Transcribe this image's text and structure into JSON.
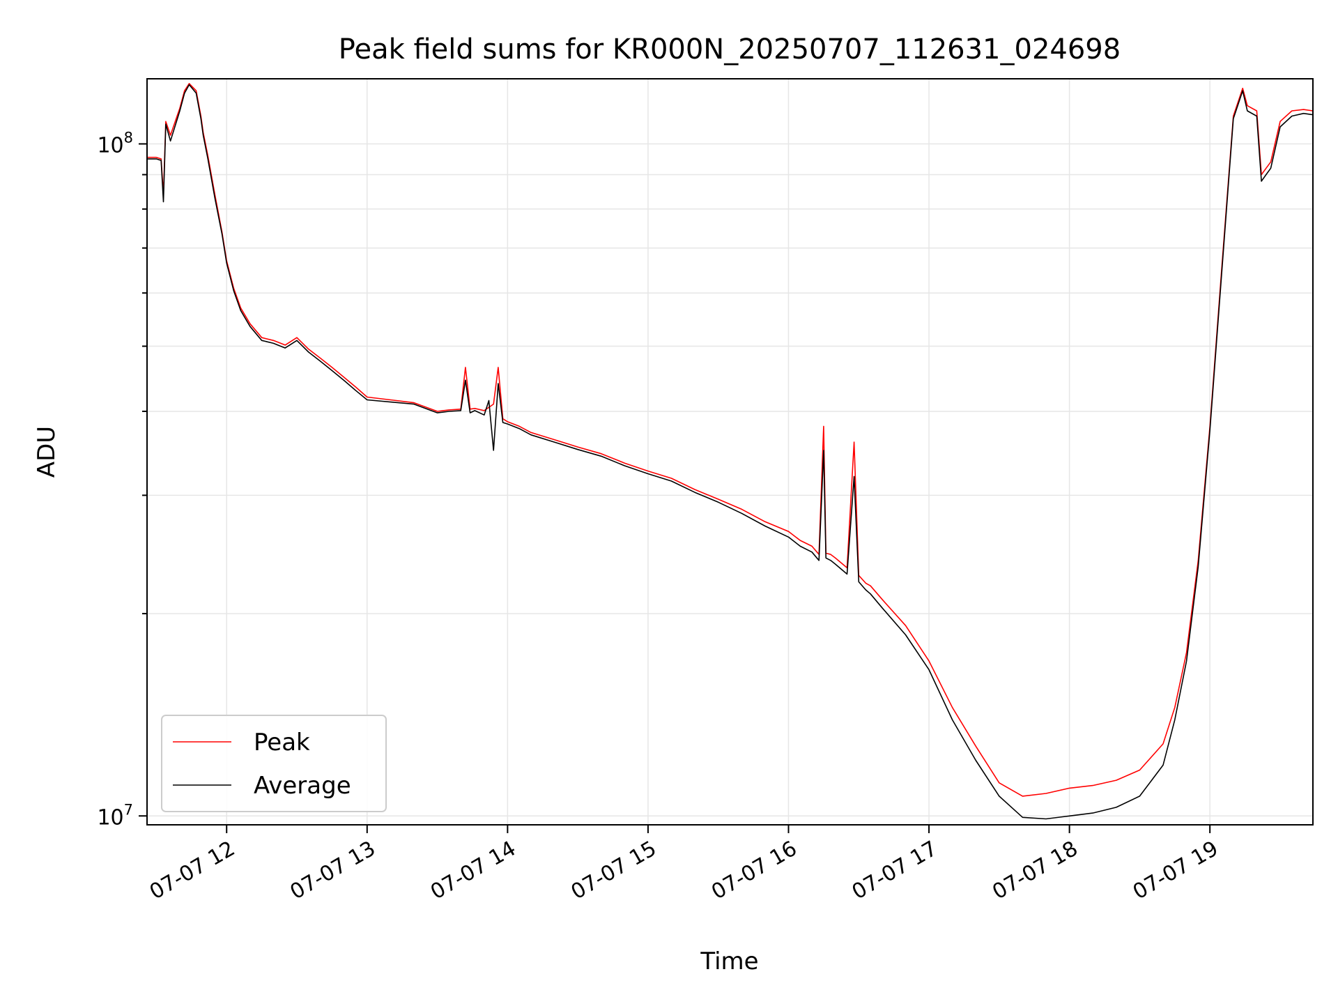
{
  "chart_data": {
    "type": "line",
    "title": "Peak field sums for KR000N_20250707_112631_024698",
    "xlabel": "Time",
    "ylabel": "ADU",
    "y_scale": "log",
    "ylim": [
      9700000,
      125000000
    ],
    "xlim": [
      "07-07 11:26",
      "07-07 19:44"
    ],
    "x_ticks": [
      "07-07 12",
      "07-07 13",
      "07-07 14",
      "07-07 15",
      "07-07 16",
      "07-07 17",
      "07-07 18",
      "07-07 19"
    ],
    "y_ticks": [
      {
        "value": 100000000,
        "base": "10",
        "exp": "8"
      },
      {
        "value": 10000000,
        "base": "10",
        "exp": "7"
      }
    ],
    "grid": true,
    "legend_position": "lower-left",
    "series": [
      {
        "name": "Peak",
        "color": "#ff0000",
        "x": [
          "11:26",
          "11:30",
          "11:32",
          "11:33",
          "11:34",
          "11:36",
          "11:40",
          "11:42",
          "11:44",
          "11:47",
          "11:49",
          "11:50",
          "11:52",
          "11:55",
          "11:58",
          "12:00",
          "12:03",
          "12:06",
          "12:10",
          "12:15",
          "12:20",
          "12:25",
          "12:30",
          "12:35",
          "12:40",
          "12:45",
          "12:50",
          "12:55",
          "13:00",
          "13:10",
          "13:20",
          "13:30",
          "13:35",
          "13:40",
          "13:42",
          "13:44",
          "13:46",
          "13:50",
          "13:54",
          "13:56",
          "13:58",
          "14:00",
          "14:05",
          "14:10",
          "14:20",
          "14:30",
          "14:40",
          "14:50",
          "15:00",
          "15:10",
          "15:20",
          "15:30",
          "15:40",
          "15:50",
          "16:00",
          "16:05",
          "16:10",
          "16:13",
          "16:15",
          "16:16",
          "16:18",
          "16:20",
          "16:25",
          "16:28",
          "16:30",
          "16:33",
          "16:35",
          "16:40",
          "16:50",
          "17:00",
          "17:10",
          "17:20",
          "17:30",
          "17:40",
          "17:50",
          "18:00",
          "18:10",
          "18:20",
          "18:30",
          "18:40",
          "18:45",
          "18:50",
          "18:55",
          "19:00",
          "19:05",
          "19:10",
          "19:14",
          "19:16",
          "19:20",
          "19:22",
          "19:24",
          "19:26",
          "19:30",
          "19:35",
          "19:40",
          "19:44"
        ],
        "values": [
          95500000,
          95500000,
          95000000,
          84000000,
          108000000,
          103000000,
          113000000,
          120000000,
          123000000,
          120000000,
          110000000,
          104000000,
          96000000,
          84000000,
          74000000,
          67000000,
          61000000,
          57000000,
          54000000,
          51500000,
          51000000,
          50200000,
          51500000,
          49500000,
          48000000,
          46500000,
          45000000,
          43500000,
          42000000,
          41600000,
          41200000,
          40000000,
          40200000,
          40300000,
          46500000,
          40300000,
          40400000,
          40100000,
          41000000,
          46500000,
          39000000,
          38600000,
          38000000,
          37200000,
          36300000,
          35400000,
          34600000,
          33500000,
          32600000,
          31800000,
          30600000,
          29600000,
          28600000,
          27400000,
          26500000,
          25700000,
          25200000,
          24500000,
          38000000,
          24600000,
          24500000,
          24200000,
          23400000,
          36000000,
          22800000,
          22200000,
          22000000,
          21000000,
          19200000,
          17000000,
          14500000,
          12700000,
          11200000,
          10700000,
          10800000,
          11000000,
          11100000,
          11300000,
          11700000,
          12800000,
          14500000,
          17500000,
          24000000,
          38000000,
          65000000,
          110000000,
          121000000,
          114000000,
          112000000,
          90000000,
          92000000,
          94000000,
          108000000,
          112000000,
          112500000,
          112000000
        ]
      },
      {
        "name": "Average",
        "color": "#000000",
        "x": [
          "11:26",
          "11:30",
          "11:32",
          "11:33",
          "11:34",
          "11:36",
          "11:40",
          "11:42",
          "11:44",
          "11:47",
          "11:49",
          "11:50",
          "11:52",
          "11:55",
          "11:58",
          "12:00",
          "12:03",
          "12:06",
          "12:10",
          "12:15",
          "12:20",
          "12:25",
          "12:30",
          "12:35",
          "12:40",
          "12:45",
          "12:50",
          "12:55",
          "13:00",
          "13:10",
          "13:20",
          "13:30",
          "13:35",
          "13:40",
          "13:42",
          "13:44",
          "13:46",
          "13:50",
          "13:52",
          "13:54",
          "13:56",
          "13:58",
          "14:00",
          "14:05",
          "14:10",
          "14:20",
          "14:30",
          "14:40",
          "14:50",
          "15:00",
          "15:10",
          "15:20",
          "15:30",
          "15:40",
          "15:50",
          "16:00",
          "16:05",
          "16:10",
          "16:13",
          "16:15",
          "16:16",
          "16:18",
          "16:20",
          "16:25",
          "16:28",
          "16:30",
          "16:33",
          "16:35",
          "16:40",
          "16:50",
          "17:00",
          "17:10",
          "17:20",
          "17:30",
          "17:40",
          "17:50",
          "18:00",
          "18:10",
          "18:20",
          "18:30",
          "18:40",
          "18:45",
          "18:50",
          "18:55",
          "19:00",
          "19:05",
          "19:10",
          "19:14",
          "19:16",
          "19:20",
          "19:22",
          "19:24",
          "19:26",
          "19:30",
          "19:35",
          "19:40",
          "19:44"
        ],
        "values": [
          95000000,
          95000000,
          94500000,
          82000000,
          107000000,
          101000000,
          112000000,
          119000000,
          122500000,
          119000000,
          109000000,
          103000000,
          95000000,
          83000000,
          73500000,
          66500000,
          60500000,
          56500000,
          53500000,
          51000000,
          50500000,
          49700000,
          51000000,
          49000000,
          47500000,
          46000000,
          44500000,
          43000000,
          41600000,
          41300000,
          41000000,
          39800000,
          40000000,
          40100000,
          44500000,
          39800000,
          40100000,
          39500000,
          41500000,
          35000000,
          44000000,
          38500000,
          38300000,
          37700000,
          36900000,
          36000000,
          35100000,
          34300000,
          33200000,
          32300000,
          31500000,
          30300000,
          29300000,
          28200000,
          27000000,
          26000000,
          25200000,
          24700000,
          24000000,
          35000000,
          24200000,
          24000000,
          23700000,
          22900000,
          32000000,
          22300000,
          21700000,
          21400000,
          20400000,
          18600000,
          16500000,
          13900000,
          12100000,
          10700000,
          9950000,
          9900000,
          10000000,
          10100000,
          10300000,
          10700000,
          11900000,
          13900000,
          17000000,
          23500000,
          37500000,
          64000000,
          109000000,
          120000000,
          112000000,
          110000000,
          88000000,
          90000000,
          92000000,
          106000000,
          110000000,
          111000000,
          110500000
        ]
      }
    ]
  }
}
